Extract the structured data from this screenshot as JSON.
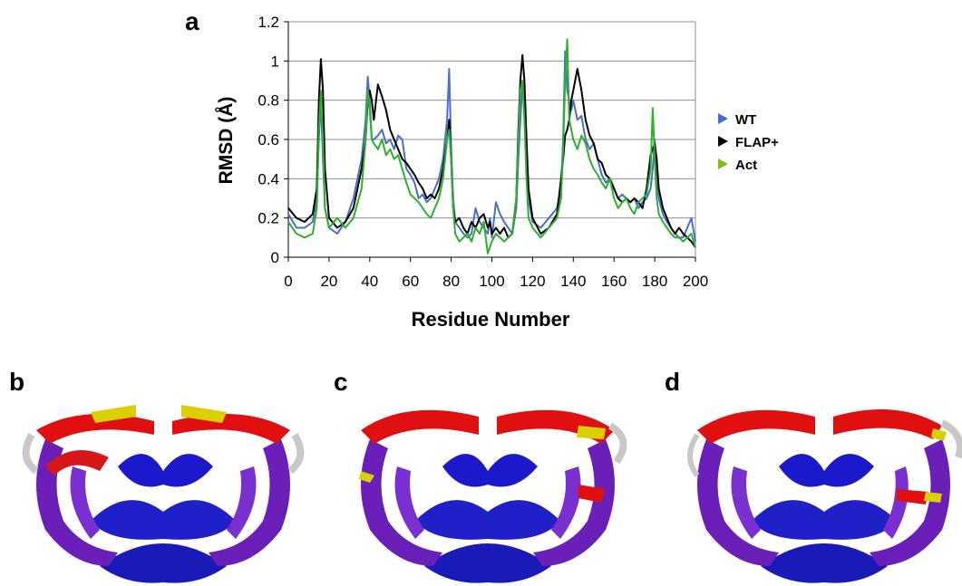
{
  "panels": {
    "a": "a",
    "b": "b",
    "c": "c",
    "d": "d"
  },
  "chart_data": {
    "type": "line",
    "xlabel": "Residue Number",
    "ylabel": "RMSD (Å)",
    "xlim": [
      0,
      200
    ],
    "ylim": [
      0,
      1.2
    ],
    "x_ticks": [
      "0",
      "20",
      "40",
      "60",
      "80",
      "100",
      "120",
      "140",
      "160",
      "180",
      "200"
    ],
    "y_ticks": [
      "0",
      "0.2",
      "0.4",
      "0.6",
      "0.8",
      "1",
      "1.2"
    ],
    "grid": "horizontal",
    "legend_position": "right",
    "x": [
      0,
      4,
      8,
      12,
      14,
      15,
      16,
      17,
      18,
      20,
      24,
      28,
      32,
      36,
      38,
      39,
      40,
      41,
      42,
      44,
      46,
      48,
      50,
      52,
      54,
      56,
      58,
      60,
      62,
      64,
      66,
      68,
      70,
      72,
      74,
      76,
      78,
      79,
      80,
      81,
      82,
      84,
      86,
      88,
      90,
      92,
      94,
      96,
      98,
      99,
      100,
      102,
      104,
      106,
      108,
      110,
      112,
      113,
      114,
      115,
      116,
      117,
      118,
      120,
      124,
      128,
      132,
      134,
      135,
      136,
      137,
      138,
      139,
      140,
      142,
      144,
      146,
      148,
      150,
      152,
      154,
      156,
      158,
      160,
      162,
      164,
      166,
      168,
      170,
      172,
      174,
      176,
      178,
      179,
      180,
      181,
      182,
      184,
      186,
      188,
      190,
      192,
      194,
      196,
      198,
      200
    ],
    "series": [
      {
        "name": "WT",
        "color": "#4a6fc8",
        "values": [
          0.22,
          0.15,
          0.15,
          0.18,
          0.3,
          0.6,
          0.8,
          0.5,
          0.25,
          0.15,
          0.12,
          0.18,
          0.3,
          0.5,
          0.7,
          0.92,
          0.8,
          0.6,
          0.6,
          0.62,
          0.65,
          0.58,
          0.6,
          0.55,
          0.62,
          0.6,
          0.45,
          0.42,
          0.38,
          0.3,
          0.32,
          0.28,
          0.3,
          0.35,
          0.4,
          0.5,
          0.7,
          0.96,
          0.55,
          0.3,
          0.18,
          0.15,
          0.12,
          0.1,
          0.12,
          0.25,
          0.18,
          0.15,
          0.12,
          0.2,
          0.1,
          0.28,
          0.22,
          0.18,
          0.15,
          0.12,
          0.25,
          0.5,
          0.7,
          0.88,
          0.85,
          0.5,
          0.3,
          0.18,
          0.15,
          0.2,
          0.25,
          0.35,
          0.6,
          1.05,
          0.85,
          0.8,
          0.75,
          0.8,
          0.7,
          0.72,
          0.6,
          0.55,
          0.58,
          0.5,
          0.42,
          0.38,
          0.4,
          0.35,
          0.3,
          0.32,
          0.3,
          0.28,
          0.3,
          0.25,
          0.28,
          0.3,
          0.35,
          0.45,
          0.6,
          0.4,
          0.3,
          0.22,
          0.18,
          0.15,
          0.12,
          0.1,
          0.1,
          0.15,
          0.2,
          0.08
        ]
      },
      {
        "name": "FLAP+",
        "color": "#000000",
        "values": [
          0.25,
          0.2,
          0.18,
          0.22,
          0.35,
          0.8,
          1.01,
          0.85,
          0.45,
          0.2,
          0.15,
          0.18,
          0.25,
          0.45,
          0.6,
          0.8,
          0.85,
          0.8,
          0.7,
          0.88,
          0.82,
          0.75,
          0.65,
          0.6,
          0.55,
          0.5,
          0.48,
          0.45,
          0.42,
          0.38,
          0.35,
          0.3,
          0.32,
          0.3,
          0.35,
          0.45,
          0.6,
          0.7,
          0.5,
          0.25,
          0.18,
          0.2,
          0.15,
          0.12,
          0.18,
          0.15,
          0.2,
          0.22,
          0.15,
          0.18,
          0.12,
          0.15,
          0.12,
          0.15,
          0.1,
          0.12,
          0.3,
          0.65,
          0.9,
          1.03,
          0.9,
          0.6,
          0.35,
          0.2,
          0.12,
          0.15,
          0.22,
          0.4,
          0.5,
          0.62,
          0.65,
          0.7,
          0.8,
          0.85,
          0.96,
          0.85,
          0.7,
          0.62,
          0.58,
          0.5,
          0.48,
          0.42,
          0.4,
          0.35,
          0.3,
          0.28,
          0.3,
          0.28,
          0.3,
          0.28,
          0.25,
          0.35,
          0.52,
          0.55,
          0.58,
          0.5,
          0.35,
          0.25,
          0.2,
          0.15,
          0.12,
          0.15,
          0.12,
          0.1,
          0.08,
          0.05
        ]
      },
      {
        "name": "Act",
        "color": "#2db02d",
        "values": [
          0.18,
          0.12,
          0.1,
          0.12,
          0.25,
          0.65,
          0.85,
          0.6,
          0.25,
          0.15,
          0.2,
          0.15,
          0.2,
          0.35,
          0.6,
          0.85,
          0.75,
          0.6,
          0.58,
          0.55,
          0.6,
          0.52,
          0.55,
          0.5,
          0.52,
          0.45,
          0.38,
          0.32,
          0.3,
          0.28,
          0.25,
          0.22,
          0.2,
          0.25,
          0.3,
          0.4,
          0.6,
          0.65,
          0.5,
          0.25,
          0.12,
          0.08,
          0.1,
          0.12,
          0.08,
          0.15,
          0.12,
          0.18,
          0.02,
          0.05,
          0.08,
          0.12,
          0.1,
          0.08,
          0.1,
          0.12,
          0.3,
          0.6,
          0.85,
          0.9,
          0.7,
          0.4,
          0.2,
          0.15,
          0.1,
          0.15,
          0.2,
          0.3,
          0.55,
          0.9,
          1.11,
          0.7,
          0.65,
          0.6,
          0.55,
          0.62,
          0.58,
          0.5,
          0.45,
          0.42,
          0.38,
          0.35,
          0.4,
          0.3,
          0.25,
          0.28,
          0.3,
          0.25,
          0.22,
          0.28,
          0.3,
          0.32,
          0.45,
          0.76,
          0.5,
          0.3,
          0.22,
          0.18,
          0.15,
          0.12,
          0.1,
          0.1,
          0.08,
          0.1,
          0.12,
          0.05
        ]
      }
    ]
  }
}
